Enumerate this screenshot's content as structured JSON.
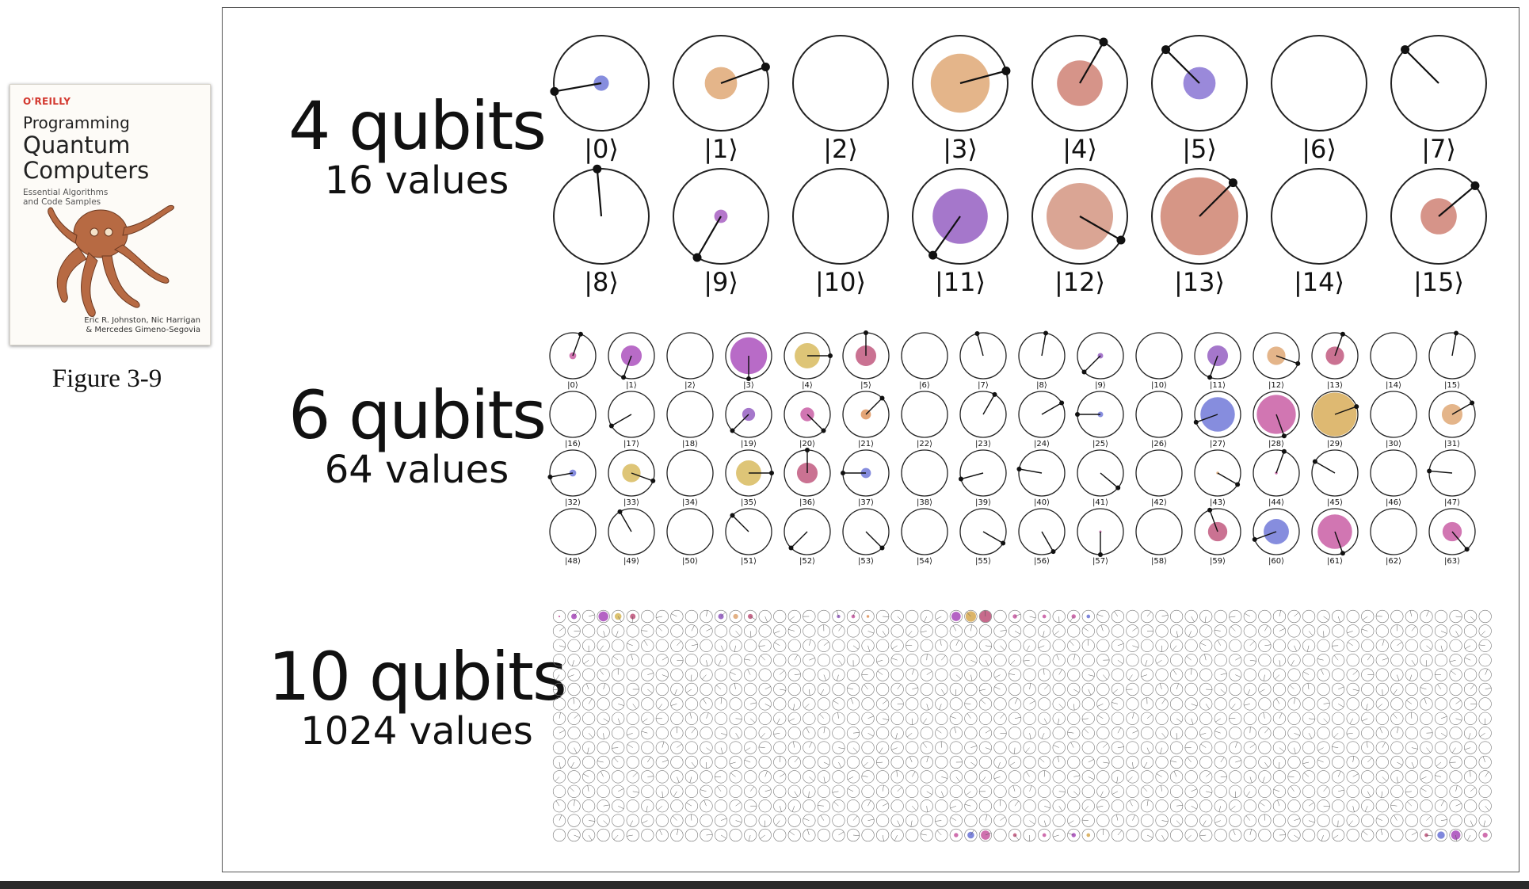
{
  "book_cover": {
    "publisher": "O'REILLY",
    "title_line1": "Programming",
    "title_line2": "Quantum",
    "title_line3": "Computers",
    "subtitle": "Essential Algorithms and Code Samples",
    "authors_line1": "Eric R. Johnston, Nic Harrigan",
    "authors_line2": "& Mercedes Gimeno-Segovia",
    "illustration": "octopus"
  },
  "caption": "Figure 3-9",
  "colors": {
    "purple": "#a070c8",
    "blue": "#7f87dc",
    "tan": "#e3b184",
    "salmon": "#d48e83",
    "pink": "#cf6fae",
    "gold": "#dcb56a",
    "rose": "#c76a8c",
    "lavender": "#9583d8"
  },
  "sections": [
    {
      "id": "4q",
      "title": "4 qubits",
      "subtitle": "16 values",
      "states": [
        {
          "label": "|0⟩",
          "mag": 0.16,
          "angle": 260,
          "color": "#7f87dc"
        },
        {
          "label": "|1⟩",
          "mag": 0.34,
          "angle": 70,
          "color": "#e3b184"
        },
        {
          "label": "|2⟩",
          "mag": 0,
          "angle": 0,
          "color": "#e3b184"
        },
        {
          "label": "|3⟩",
          "mag": 0.62,
          "angle": 75,
          "color": "#e3b184"
        },
        {
          "label": "|4⟩",
          "mag": 0.48,
          "angle": 30,
          "color": "#d48e83"
        },
        {
          "label": "|5⟩",
          "mag": 0.34,
          "angle": 315,
          "color": "#9583d8"
        },
        {
          "label": "|6⟩",
          "mag": 0,
          "angle": 0,
          "color": "#e3b184"
        },
        {
          "label": "|7⟩",
          "mag": 0,
          "angle": 315,
          "color": "#e3b184"
        },
        {
          "label": "|8⟩",
          "mag": 0,
          "angle": 355,
          "color": "#e3b184"
        },
        {
          "label": "|9⟩",
          "mag": 0.14,
          "angle": 210,
          "color": "#b070c8"
        },
        {
          "label": "|10⟩",
          "mag": 0,
          "angle": 0,
          "color": "#e3b184"
        },
        {
          "label": "|11⟩",
          "mag": 0.58,
          "angle": 215,
          "color": "#a070c8"
        },
        {
          "label": "|12⟩",
          "mag": 0.7,
          "angle": 120,
          "color": "#d8a08e"
        },
        {
          "label": "|13⟩",
          "mag": 0.82,
          "angle": 45,
          "color": "#d4907f"
        },
        {
          "label": "|14⟩",
          "mag": 0,
          "angle": 0,
          "color": "#e3b184"
        },
        {
          "label": "|15⟩",
          "mag": 0.38,
          "angle": 50,
          "color": "#d48e83"
        }
      ]
    },
    {
      "id": "6q",
      "title": "6 qubits",
      "subtitle": "64 values",
      "states": [
        {
          "label": "|0⟩",
          "mag": 0.15,
          "angle": 20,
          "color": "#cf6fae"
        },
        {
          "label": "|1⟩",
          "mag": 0.45,
          "angle": 200,
          "color": "#b463c4"
        },
        {
          "label": "|2⟩",
          "mag": 0,
          "angle": 0,
          "color": "#e3b184"
        },
        {
          "label": "|3⟩",
          "mag": 0.8,
          "angle": 180,
          "color": "#b463c4"
        },
        {
          "label": "|4⟩",
          "mag": 0.55,
          "angle": 90,
          "color": "#dcc270"
        },
        {
          "label": "|5⟩",
          "mag": 0.45,
          "angle": 0,
          "color": "#c76a8c"
        },
        {
          "label": "|6⟩",
          "mag": 0,
          "angle": 0,
          "color": "#e3b184"
        },
        {
          "label": "|7⟩",
          "mag": 0,
          "angle": 345,
          "color": "#e3b184"
        },
        {
          "label": "|8⟩",
          "mag": 0,
          "angle": 10,
          "color": "#e3b184"
        },
        {
          "label": "|9⟩",
          "mag": 0.12,
          "angle": 225,
          "color": "#a070c8"
        },
        {
          "label": "|10⟩",
          "mag": 0,
          "angle": 0,
          "color": "#e3b184"
        },
        {
          "label": "|11⟩",
          "mag": 0.45,
          "angle": 200,
          "color": "#a070c8"
        },
        {
          "label": "|12⟩",
          "mag": 0.4,
          "angle": 110,
          "color": "#e3b184"
        },
        {
          "label": "|13⟩",
          "mag": 0.4,
          "angle": 20,
          "color": "#c76a8c"
        },
        {
          "label": "|14⟩",
          "mag": 0,
          "angle": 0,
          "color": "#e3b184"
        },
        {
          "label": "|15⟩",
          "mag": 0,
          "angle": 10,
          "color": "#e3b184"
        },
        {
          "label": "|16⟩",
          "mag": 0,
          "angle": 0,
          "color": "#e3b184"
        },
        {
          "label": "|17⟩",
          "mag": 0,
          "angle": 240,
          "color": "#e3b184"
        },
        {
          "label": "|18⟩",
          "mag": 0,
          "angle": 0,
          "color": "#e3b184"
        },
        {
          "label": "|19⟩",
          "mag": 0.28,
          "angle": 225,
          "color": "#a070c8"
        },
        {
          "label": "|20⟩",
          "mag": 0.3,
          "angle": 135,
          "color": "#cf6fae"
        },
        {
          "label": "|21⟩",
          "mag": 0.22,
          "angle": 45,
          "color": "#e3a070"
        },
        {
          "label": "|22⟩",
          "mag": 0,
          "angle": 0,
          "color": "#e3b184"
        },
        {
          "label": "|23⟩",
          "mag": 0,
          "angle": 30,
          "color": "#e3b184"
        },
        {
          "label": "|24⟩",
          "mag": 0,
          "angle": 60,
          "color": "#e3b184"
        },
        {
          "label": "|25⟩",
          "mag": 0.12,
          "angle": 270,
          "color": "#7f87dc"
        },
        {
          "label": "|26⟩",
          "mag": 0,
          "angle": 0,
          "color": "#e3b184"
        },
        {
          "label": "|27⟩",
          "mag": 0.75,
          "angle": 250,
          "color": "#7f87dc"
        },
        {
          "label": "|28⟩",
          "mag": 0.85,
          "angle": 160,
          "color": "#cf6fae"
        },
        {
          "label": "|29⟩",
          "mag": 0.95,
          "angle": 70,
          "color": "#dcb56a"
        },
        {
          "label": "|30⟩",
          "mag": 0,
          "angle": 0,
          "color": "#e3b184"
        },
        {
          "label": "|31⟩",
          "mag": 0.45,
          "angle": 60,
          "color": "#e3b184"
        },
        {
          "label": "|32⟩",
          "mag": 0.15,
          "angle": 260,
          "color": "#7f87dc"
        },
        {
          "label": "|33⟩",
          "mag": 0.4,
          "angle": 110,
          "color": "#dcc270"
        },
        {
          "label": "|34⟩",
          "mag": 0,
          "angle": 0,
          "color": "#e3b184"
        },
        {
          "label": "|35⟩",
          "mag": 0.55,
          "angle": 90,
          "color": "#dcc270"
        },
        {
          "label": "|36⟩",
          "mag": 0.45,
          "angle": 0,
          "color": "#c76a8c"
        },
        {
          "label": "|37⟩",
          "mag": 0.22,
          "angle": 270,
          "color": "#7f87dc"
        },
        {
          "label": "|38⟩",
          "mag": 0,
          "angle": 0,
          "color": "#e3b184"
        },
        {
          "label": "|39⟩",
          "mag": 0,
          "angle": 255,
          "color": "#e3b184"
        },
        {
          "label": "|40⟩",
          "mag": 0,
          "angle": 280,
          "color": "#e3b184"
        },
        {
          "label": "|41⟩",
          "mag": 0,
          "angle": 130,
          "color": "#e3b184"
        },
        {
          "label": "|42⟩",
          "mag": 0,
          "angle": 0,
          "color": "#e3b184"
        },
        {
          "label": "|43⟩",
          "mag": 0.06,
          "angle": 120,
          "color": "#e3b184"
        },
        {
          "label": "|44⟩",
          "mag": 0.06,
          "angle": 20,
          "color": "#cf6fae"
        },
        {
          "label": "|45⟩",
          "mag": 0,
          "angle": 300,
          "color": "#e3b184"
        },
        {
          "label": "|46⟩",
          "mag": 0,
          "angle": 0,
          "color": "#e3b184"
        },
        {
          "label": "|47⟩",
          "mag": 0,
          "angle": 275,
          "color": "#e3b184"
        },
        {
          "label": "|48⟩",
          "mag": 0,
          "angle": 0,
          "color": "#e3b184"
        },
        {
          "label": "|49⟩",
          "mag": 0,
          "angle": 330,
          "color": "#e3b184"
        },
        {
          "label": "|50⟩",
          "mag": 0,
          "angle": 0,
          "color": "#e3b184"
        },
        {
          "label": "|51⟩",
          "mag": 0,
          "angle": 315,
          "color": "#e3b184"
        },
        {
          "label": "|52⟩",
          "mag": 0,
          "angle": 225,
          "color": "#e3b184"
        },
        {
          "label": "|53⟩",
          "mag": 0,
          "angle": 135,
          "color": "#e3b184"
        },
        {
          "label": "|54⟩",
          "mag": 0,
          "angle": 0,
          "color": "#e3b184"
        },
        {
          "label": "|55⟩",
          "mag": 0,
          "angle": 120,
          "color": "#e3b184"
        },
        {
          "label": "|56⟩",
          "mag": 0,
          "angle": 150,
          "color": "#e3b184"
        },
        {
          "label": "|57⟩",
          "mag": 0.05,
          "angle": 180,
          "color": "#cf6fae"
        },
        {
          "label": "|58⟩",
          "mag": 0,
          "angle": 0,
          "color": "#e3b184"
        },
        {
          "label": "|59⟩",
          "mag": 0.42,
          "angle": 340,
          "color": "#c76a8c"
        },
        {
          "label": "|60⟩",
          "mag": 0.55,
          "angle": 250,
          "color": "#7f87dc"
        },
        {
          "label": "|61⟩",
          "mag": 0.75,
          "angle": 160,
          "color": "#cf6fae"
        },
        {
          "label": "|62⟩",
          "mag": 0,
          "angle": 0,
          "color": "#e3b184"
        },
        {
          "label": "|63⟩",
          "mag": 0.42,
          "angle": 140,
          "color": "#cf6fae"
        }
      ]
    },
    {
      "id": "10q",
      "title": "10 qubits",
      "subtitle": "1024 values",
      "columns": 64,
      "rows": 16,
      "nonzero_top_row": [
        {
          "col": 0,
          "mag": 0.15,
          "color": "#cf6fae"
        },
        {
          "col": 1,
          "mag": 0.45,
          "color": "#b463c4"
        },
        {
          "col": 3,
          "mag": 0.8,
          "color": "#b463c4"
        },
        {
          "col": 4,
          "mag": 0.55,
          "color": "#dcc270"
        },
        {
          "col": 5,
          "mag": 0.45,
          "color": "#c76a8c"
        },
        {
          "col": 11,
          "mag": 0.45,
          "color": "#a070c8"
        },
        {
          "col": 12,
          "mag": 0.4,
          "color": "#e3b184"
        },
        {
          "col": 13,
          "mag": 0.4,
          "color": "#c76a8c"
        },
        {
          "col": 19,
          "mag": 0.28,
          "color": "#a070c8"
        },
        {
          "col": 20,
          "mag": 0.3,
          "color": "#cf6fae"
        },
        {
          "col": 21,
          "mag": 0.22,
          "color": "#e3a070"
        },
        {
          "col": 27,
          "mag": 0.75,
          "color": "#b463c4"
        },
        {
          "col": 28,
          "mag": 0.85,
          "color": "#dcb56a"
        },
        {
          "col": 29,
          "mag": 0.95,
          "color": "#c76a8c"
        },
        {
          "col": 31,
          "mag": 0.35,
          "color": "#cf6fae"
        },
        {
          "col": 33,
          "mag": 0.3,
          "color": "#cf6fae"
        },
        {
          "col": 35,
          "mag": 0.35,
          "color": "#cf6fae"
        },
        {
          "col": 36,
          "mag": 0.3,
          "color": "#7f87dc"
        }
      ],
      "nonzero_bottom_row": [
        {
          "col": 27,
          "mag": 0.35,
          "color": "#cf6fae"
        },
        {
          "col": 28,
          "mag": 0.55,
          "color": "#7f87dc"
        },
        {
          "col": 29,
          "mag": 0.75,
          "color": "#cf6fae"
        },
        {
          "col": 31,
          "mag": 0.3,
          "color": "#c76a8c"
        },
        {
          "col": 33,
          "mag": 0.3,
          "color": "#cf6fae"
        },
        {
          "col": 35,
          "mag": 0.35,
          "color": "#b463c4"
        },
        {
          "col": 36,
          "mag": 0.3,
          "color": "#dcb56a"
        },
        {
          "col": 59,
          "mag": 0.3,
          "color": "#c76a8c"
        },
        {
          "col": 60,
          "mag": 0.6,
          "color": "#7f87dc"
        },
        {
          "col": 61,
          "mag": 0.75,
          "color": "#b463c4"
        },
        {
          "col": 63,
          "mag": 0.4,
          "color": "#cf6fae"
        }
      ]
    }
  ]
}
